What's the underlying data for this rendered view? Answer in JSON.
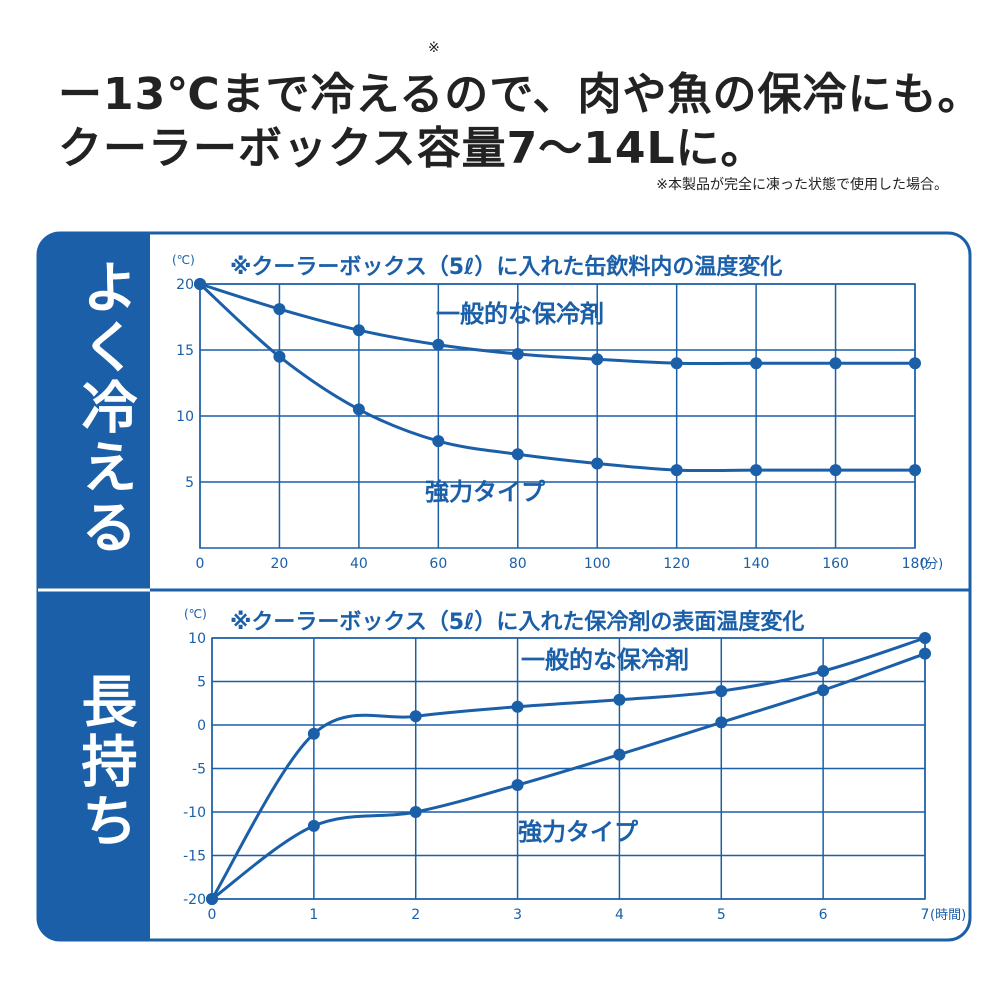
{
  "header": {
    "title_line1": [
      "ー13℃まで冷える",
      "ので、肉や魚の保冷にも。"
    ],
    "mark": "※",
    "title_line2": "クーラーボックス容量7〜14Lに。",
    "note": "※本製品が完全に凍った状態で使用した場合。"
  },
  "chart_data": [
    {
      "type": "line",
      "side_label": "よく冷える",
      "title": "※クーラーボックス（5ℓ）に入れた缶飲料内の温度変化",
      "y_unit": "(℃)",
      "x_unit": "(分)",
      "x": [
        0,
        20,
        40,
        60,
        80,
        100,
        120,
        140,
        160,
        180
      ],
      "xlim": [
        0,
        180
      ],
      "xticks": [
        0,
        20,
        40,
        60,
        80,
        100,
        120,
        140,
        160,
        180
      ],
      "ylim": [
        0,
        20
      ],
      "yticks": [
        5,
        10,
        15,
        20
      ],
      "grid": true,
      "color": "#1a5fa8",
      "series": [
        {
          "name": "一般的な保冷剤",
          "color": "#1a5fa8",
          "values": [
            20,
            18.1,
            16.5,
            15.4,
            14.7,
            14.3,
            14.0,
            14.0,
            14.0,
            14.0
          ]
        },
        {
          "name": "強力タイプ",
          "color": "#1a5fa8",
          "values": [
            20,
            14.5,
            10.5,
            8.1,
            7.1,
            6.4,
            5.9,
            5.9,
            5.9,
            5.9
          ]
        }
      ]
    },
    {
      "type": "line",
      "side_label": "長持ち",
      "title": "※クーラーボックス（5ℓ）に入れた保冷剤の表面温度変化",
      "y_unit": "(℃)",
      "x_unit": "(時間)",
      "x": [
        0,
        1,
        2,
        3,
        4,
        5,
        6,
        7
      ],
      "xlim": [
        0,
        7
      ],
      "xticks": [
        0,
        1,
        2,
        3,
        4,
        5,
        6,
        7
      ],
      "ylim": [
        -20,
        10
      ],
      "yticks": [
        -20,
        -15,
        -10,
        -5,
        0,
        5,
        10
      ],
      "grid": true,
      "color": "#1a5fa8",
      "series": [
        {
          "name": "一般的な保冷剤",
          "color": "#1a5fa8",
          "values": [
            -20,
            -1,
            1,
            2.1,
            2.9,
            3.9,
            6.2,
            10
          ]
        },
        {
          "name": "強力タイプ",
          "color": "#1a5fa8",
          "values": [
            -20,
            -11.6,
            -10,
            -6.9,
            -3.4,
            0.3,
            4,
            8.2
          ]
        }
      ]
    }
  ]
}
